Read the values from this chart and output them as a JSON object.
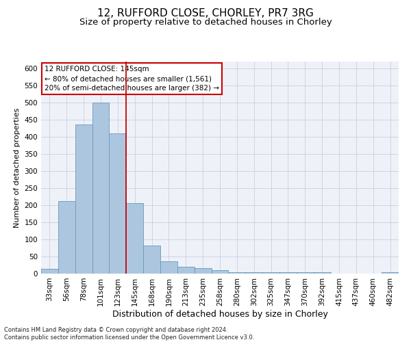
{
  "title1": "12, RUFFORD CLOSE, CHORLEY, PR7 3RG",
  "title2": "Size of property relative to detached houses in Chorley",
  "xlabel": "Distribution of detached houses by size in Chorley",
  "ylabel": "Number of detached properties",
  "footer": "Contains HM Land Registry data © Crown copyright and database right 2024.\nContains public sector information licensed under the Open Government Licence v3.0.",
  "bin_labels": [
    "33sqm",
    "56sqm",
    "78sqm",
    "101sqm",
    "123sqm",
    "145sqm",
    "168sqm",
    "190sqm",
    "213sqm",
    "235sqm",
    "258sqm",
    "280sqm",
    "302sqm",
    "325sqm",
    "347sqm",
    "370sqm",
    "392sqm",
    "415sqm",
    "437sqm",
    "460sqm",
    "482sqm"
  ],
  "bar_values": [
    15,
    212,
    435,
    500,
    410,
    207,
    82,
    37,
    20,
    17,
    11,
    5,
    4,
    4,
    4,
    4,
    4,
    0,
    0,
    0,
    4
  ],
  "bar_color": "#adc6e0",
  "bar_edge_color": "#6699bb",
  "vline_x": 5,
  "vline_color": "#cc0000",
  "annotation_text": "12 RUFFORD CLOSE: 145sqm\n← 80% of detached houses are smaller (1,561)\n20% of semi-detached houses are larger (382) →",
  "annotation_box_color": "#ffffff",
  "annotation_box_edge": "#cc0000",
  "ylim": [
    0,
    620
  ],
  "yticks": [
    0,
    50,
    100,
    150,
    200,
    250,
    300,
    350,
    400,
    450,
    500,
    550,
    600
  ],
  "grid_color": "#c8d0e0",
  "bg_color": "#eef2f8",
  "title1_fontsize": 11,
  "title2_fontsize": 9.5,
  "xlabel_fontsize": 9,
  "ylabel_fontsize": 8,
  "tick_fontsize": 7.5,
  "footer_fontsize": 6,
  "annot_fontsize": 7.5
}
